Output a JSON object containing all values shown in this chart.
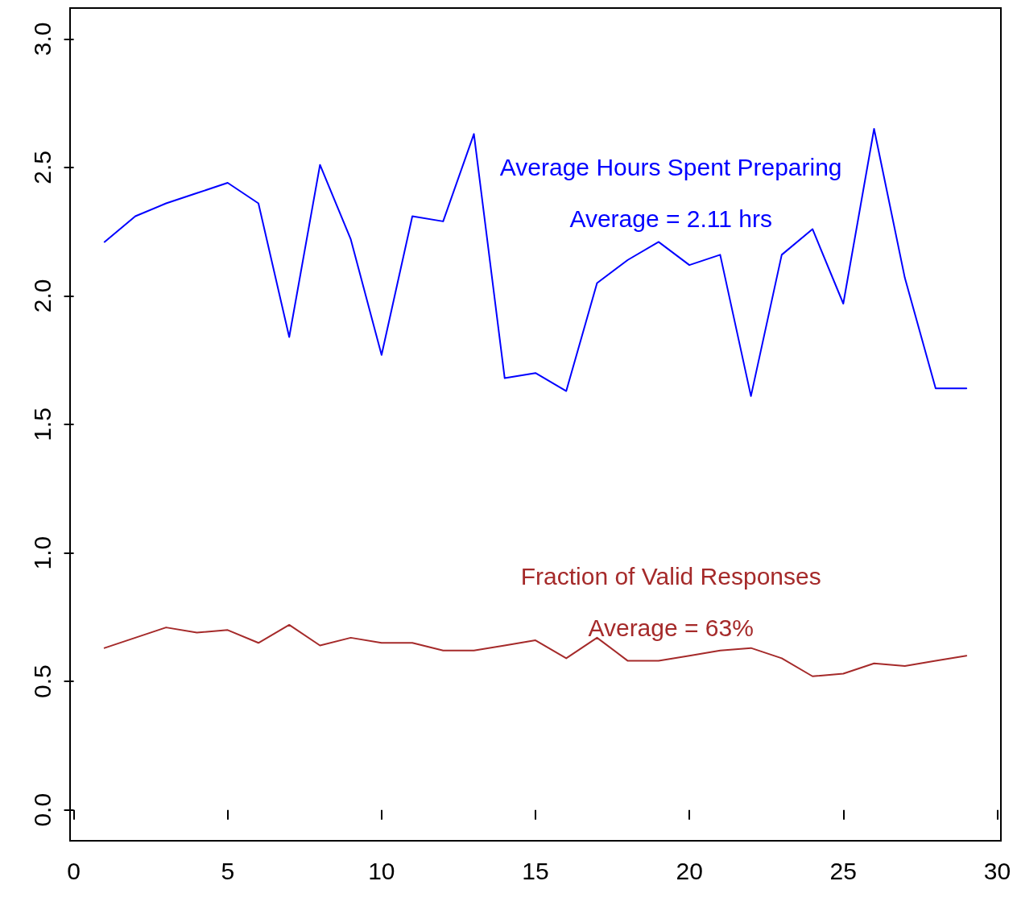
{
  "chart_data": {
    "type": "line",
    "x": [
      1,
      2,
      3,
      4,
      5,
      6,
      7,
      8,
      9,
      10,
      11,
      12,
      13,
      14,
      15,
      16,
      17,
      18,
      19,
      20,
      21,
      22,
      23,
      24,
      25,
      26,
      27,
      28,
      29
    ],
    "series": [
      {
        "name": "Average Hours Spent Preparing",
        "color": "#0000ff",
        "values": [
          2.21,
          2.31,
          2.36,
          2.4,
          2.44,
          2.36,
          1.84,
          2.51,
          2.22,
          1.77,
          2.31,
          2.29,
          2.63,
          1.68,
          1.7,
          1.63,
          2.05,
          2.14,
          2.21,
          2.12,
          2.16,
          1.61,
          2.16,
          2.26,
          1.97,
          2.65,
          2.07,
          1.64,
          1.64
        ]
      },
      {
        "name": "Fraction of Valid Responses",
        "color": "#a52a2a",
        "values": [
          0.63,
          0.67,
          0.71,
          0.69,
          0.7,
          0.65,
          0.72,
          0.64,
          0.67,
          0.65,
          0.65,
          0.62,
          0.62,
          0.64,
          0.66,
          0.59,
          0.67,
          0.58,
          0.58,
          0.6,
          0.62,
          0.63,
          0.59,
          0.52,
          0.53,
          0.57,
          0.56,
          0.58,
          0.6
        ]
      }
    ],
    "annotations": [
      "Average = 2.11 hrs",
      "Average = 63%"
    ],
    "xlim": [
      -0.12,
      30.12
    ],
    "xticks": [
      0,
      5,
      10,
      15,
      20,
      25,
      30
    ],
    "ylim": [
      -0.12,
      3.12
    ],
    "yticks": [
      {
        "value": 0,
        "label": "0.0"
      },
      {
        "value": 0.5,
        "label": "0.5"
      },
      {
        "value": 1,
        "label": "1.0"
      },
      {
        "value": 1.5,
        "label": "1.5"
      },
      {
        "value": 2,
        "label": "2.0"
      },
      {
        "value": 2.5,
        "label": "2.5"
      },
      {
        "value": 3,
        "label": "3.0"
      }
    ],
    "grid": false,
    "legend": false,
    "marker": "none",
    "line_style": "solid"
  }
}
